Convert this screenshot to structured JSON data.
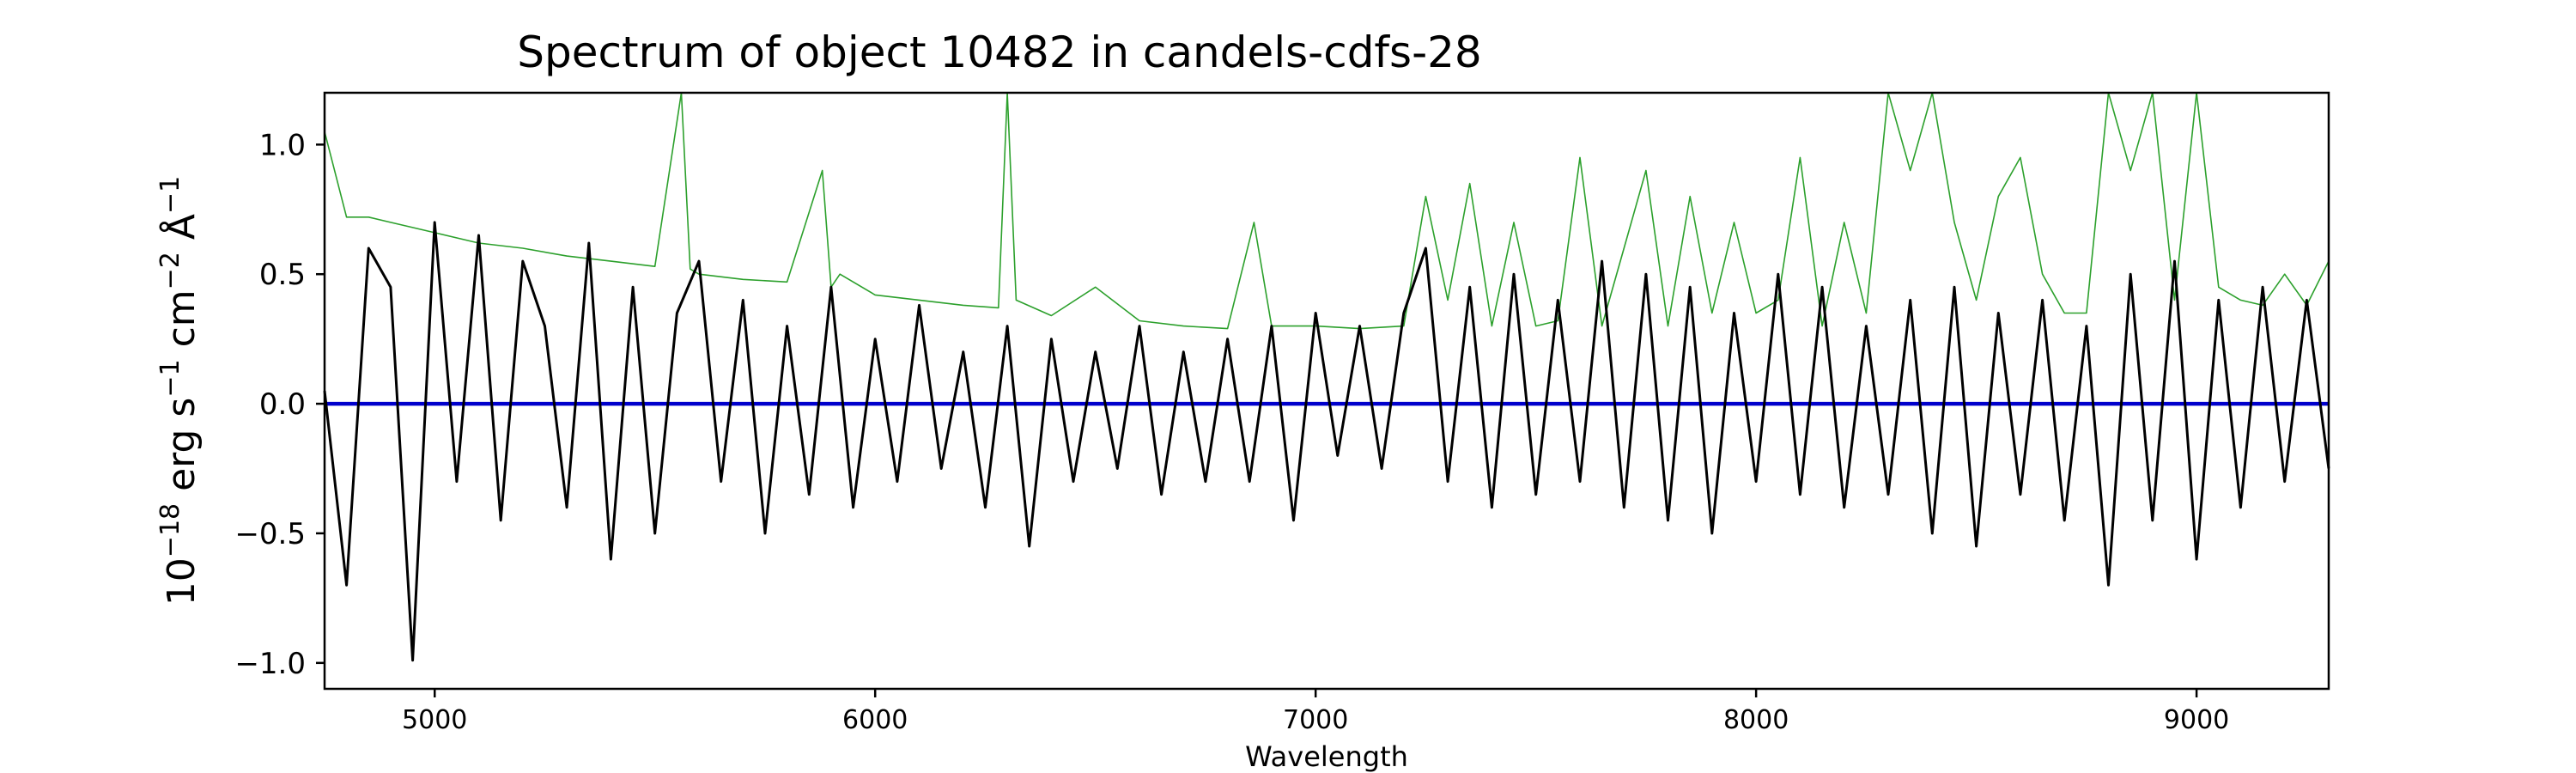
{
  "chart_data": {
    "type": "line",
    "title": "Spectrum of object 10482 in candels-cdfs-28",
    "xlabel": "Wavelength",
    "ylabel": {
      "base": "10",
      "exp1": "−18",
      "unit1": " erg s",
      "exp2": "−1",
      "unit2": " cm",
      "exp3": "−2",
      "unit3": " Å",
      "exp4": "−1"
    },
    "xlim": [
      4750,
      9300
    ],
    "ylim": [
      -1.1,
      1.2
    ],
    "x_ticks": [
      5000,
      6000,
      7000,
      8000,
      9000
    ],
    "x_tick_labels": [
      "5000",
      "6000",
      "7000",
      "8000",
      "9000"
    ],
    "y_ticks": [
      1.0,
      0.5,
      0.0,
      -0.5,
      -1.0
    ],
    "y_tick_labels": [
      "1.0",
      "0.5",
      "0.0",
      "−0.5",
      "−1.0"
    ],
    "grid": false,
    "colors": {
      "flux": "#000000",
      "error": "#2ca02c",
      "zero": "#0000cc"
    },
    "series": [
      {
        "role": "flux",
        "x": [
          4750,
          4800,
          4850,
          4900,
          4950,
          5000,
          5050,
          5100,
          5150,
          5200,
          5250,
          5300,
          5350,
          5400,
          5450,
          5500,
          5550,
          5600,
          5650,
          5700,
          5750,
          5800,
          5850,
          5900,
          5950,
          6000,
          6050,
          6100,
          6150,
          6200,
          6250,
          6300,
          6350,
          6400,
          6450,
          6500,
          6550,
          6600,
          6650,
          6700,
          6750,
          6800,
          6850,
          6900,
          6950,
          7000,
          7050,
          7100,
          7150,
          7200,
          7250,
          7300,
          7350,
          7400,
          7450,
          7500,
          7550,
          7600,
          7650,
          7700,
          7750,
          7800,
          7850,
          7900,
          7950,
          8000,
          8050,
          8100,
          8150,
          8200,
          8250,
          8300,
          8350,
          8400,
          8450,
          8500,
          8550,
          8600,
          8650,
          8700,
          8750,
          8800,
          8850,
          8900,
          8950,
          9000,
          9050,
          9100,
          9150,
          9200,
          9250,
          9300
        ],
        "y": [
          0.05,
          -0.7,
          0.6,
          0.45,
          -0.99,
          0.7,
          -0.3,
          0.65,
          -0.45,
          0.55,
          0.3,
          -0.4,
          0.62,
          -0.6,
          0.45,
          -0.5,
          0.35,
          0.55,
          -0.3,
          0.4,
          -0.5,
          0.3,
          -0.35,
          0.45,
          -0.4,
          0.25,
          -0.3,
          0.38,
          -0.25,
          0.2,
          -0.4,
          0.3,
          -0.55,
          0.25,
          -0.3,
          0.2,
          -0.25,
          0.3,
          -0.35,
          0.2,
          -0.3,
          0.25,
          -0.3,
          0.3,
          -0.45,
          0.35,
          -0.2,
          0.3,
          -0.25,
          0.35,
          0.6,
          -0.3,
          0.45,
          -0.4,
          0.5,
          -0.35,
          0.4,
          -0.3,
          0.55,
          -0.4,
          0.5,
          -0.45,
          0.45,
          -0.5,
          0.35,
          -0.3,
          0.5,
          -0.35,
          0.45,
          -0.4,
          0.3,
          -0.35,
          0.4,
          -0.5,
          0.45,
          -0.55,
          0.35,
          -0.35,
          0.4,
          -0.45,
          0.3,
          -0.7,
          0.5,
          -0.45,
          0.55,
          -0.6,
          0.4,
          -0.4,
          0.45,
          -0.3,
          0.4,
          -0.25
        ]
      },
      {
        "role": "error",
        "x": [
          4750,
          4800,
          4850,
          4900,
          4950,
          5000,
          5100,
          5200,
          5300,
          5400,
          5500,
          5560,
          5580,
          5600,
          5700,
          5800,
          5880,
          5900,
          5920,
          6000,
          6100,
          6200,
          6280,
          6300,
          6320,
          6400,
          6500,
          6600,
          6700,
          6800,
          6860,
          6900,
          7000,
          7100,
          7200,
          7250,
          7300,
          7350,
          7400,
          7450,
          7500,
          7550,
          7600,
          7650,
          7700,
          7750,
          7800,
          7850,
          7900,
          7950,
          8000,
          8050,
          8100,
          8150,
          8200,
          8250,
          8300,
          8350,
          8400,
          8450,
          8500,
          8550,
          8600,
          8650,
          8700,
          8750,
          8800,
          8850,
          8900,
          8950,
          9000,
          9050,
          9100,
          9150,
          9200,
          9250,
          9300
        ],
        "y": [
          1.05,
          0.72,
          0.72,
          0.7,
          0.68,
          0.66,
          0.62,
          0.6,
          0.57,
          0.55,
          0.53,
          1.2,
          0.52,
          0.5,
          0.48,
          0.47,
          0.9,
          0.45,
          0.5,
          0.42,
          0.4,
          0.38,
          0.37,
          1.2,
          0.4,
          0.34,
          0.45,
          0.32,
          0.3,
          0.29,
          0.7,
          0.3,
          0.3,
          0.29,
          0.3,
          0.8,
          0.4,
          0.85,
          0.3,
          0.7,
          0.3,
          0.32,
          0.95,
          0.3,
          0.6,
          0.9,
          0.3,
          0.8,
          0.35,
          0.7,
          0.35,
          0.4,
          0.95,
          0.3,
          0.7,
          0.35,
          1.2,
          0.9,
          1.2,
          0.7,
          0.4,
          0.8,
          0.95,
          0.5,
          0.35,
          0.35,
          1.2,
          0.9,
          1.2,
          0.4,
          1.2,
          0.45,
          0.4,
          0.38,
          0.5,
          0.38,
          0.55
        ]
      },
      {
        "role": "zero",
        "x": [
          4750,
          9300
        ],
        "y": [
          0,
          0
        ]
      }
    ]
  }
}
